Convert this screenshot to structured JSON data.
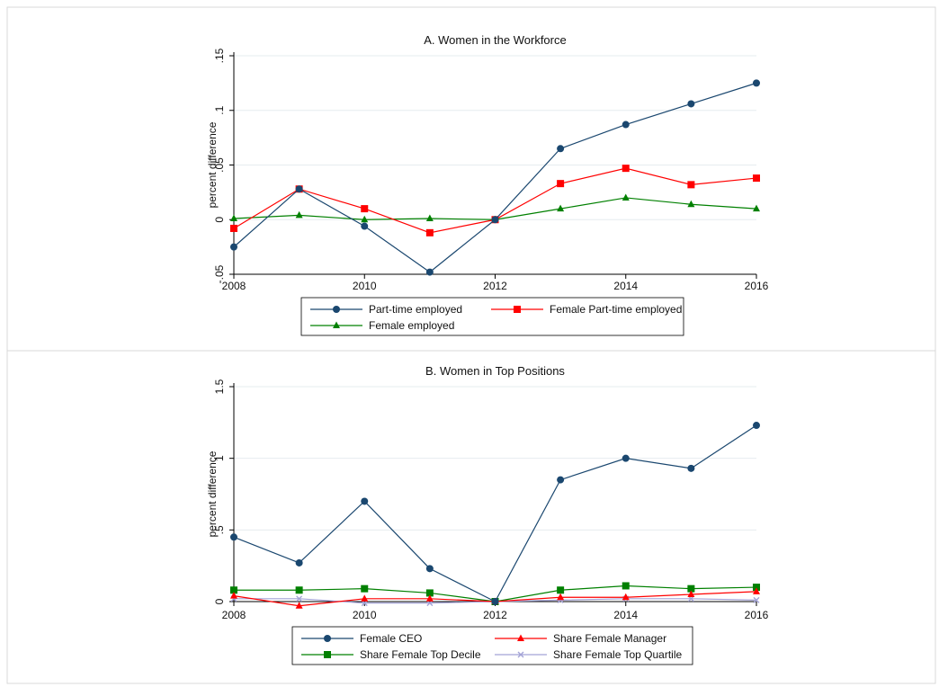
{
  "chart_data": [
    {
      "type": "line",
      "title": "A. Women in the Workforce",
      "xlabel": "",
      "ylabel": "percent difference",
      "x": [
        2008,
        2009,
        2010,
        2011,
        2012,
        2013,
        2014,
        2015,
        2016
      ],
      "xticks": [
        "2008",
        "2010",
        "2012",
        "2014",
        "2016"
      ],
      "xlim": [
        2008,
        2016
      ],
      "yticks": [
        "-.05",
        "0",
        ".05",
        ".1",
        ".15"
      ],
      "ylim": [
        -0.05,
        0.15
      ],
      "grid": true,
      "legend_placement": "bottom",
      "series": [
        {
          "name": "Part-time employed",
          "color": "#1a476f",
          "marker": "circle",
          "values": [
            -0.025,
            0.028,
            -0.006,
            -0.048,
            0.0,
            0.065,
            0.087,
            0.106,
            0.125
          ]
        },
        {
          "name": "Female Part-time employed",
          "color": "#ff0000",
          "marker": "square",
          "values": [
            -0.008,
            0.028,
            0.01,
            -0.012,
            0.0,
            0.033,
            0.047,
            0.032,
            0.038
          ]
        },
        {
          "name": "Female employed",
          "color": "#008000",
          "marker": "triangle",
          "values": [
            0.001,
            0.004,
            0.0,
            0.001,
            0.0,
            0.01,
            0.02,
            0.014,
            0.01
          ]
        }
      ]
    },
    {
      "type": "line",
      "title": "B. Women in Top Positions",
      "xlabel": "",
      "ylabel": "percent difference",
      "x": [
        2008,
        2009,
        2010,
        2011,
        2012,
        2013,
        2014,
        2015,
        2016
      ],
      "xticks": [
        "2008",
        "2010",
        "2012",
        "2014",
        "2016"
      ],
      "xlim": [
        2008,
        2016
      ],
      "yticks": [
        "0",
        ".5",
        "1",
        "1.5"
      ],
      "ylim": [
        0,
        1.5
      ],
      "grid": true,
      "legend_placement": "bottom",
      "series": [
        {
          "name": "Female CEO",
          "color": "#1a476f",
          "marker": "circle",
          "values": [
            0.45,
            0.27,
            0.7,
            0.23,
            0.0,
            0.85,
            1.0,
            0.93,
            1.23
          ]
        },
        {
          "name": "Share Female Manager",
          "color": "#ff0000",
          "marker": "triangle",
          "values": [
            0.04,
            -0.03,
            0.02,
            0.02,
            0.0,
            0.03,
            0.03,
            0.05,
            0.07
          ]
        },
        {
          "name": "Share Female Top Decile",
          "color": "#008000",
          "marker": "square",
          "values": [
            0.08,
            0.08,
            0.09,
            0.06,
            0.0,
            0.08,
            0.11,
            0.09,
            0.1
          ]
        },
        {
          "name": "Share Female Top Quartile",
          "color": "#a3a3d6",
          "marker": "x",
          "values": [
            0.02,
            0.02,
            -0.01,
            -0.01,
            0.0,
            0.01,
            0.02,
            0.02,
            0.01
          ]
        }
      ]
    }
  ]
}
